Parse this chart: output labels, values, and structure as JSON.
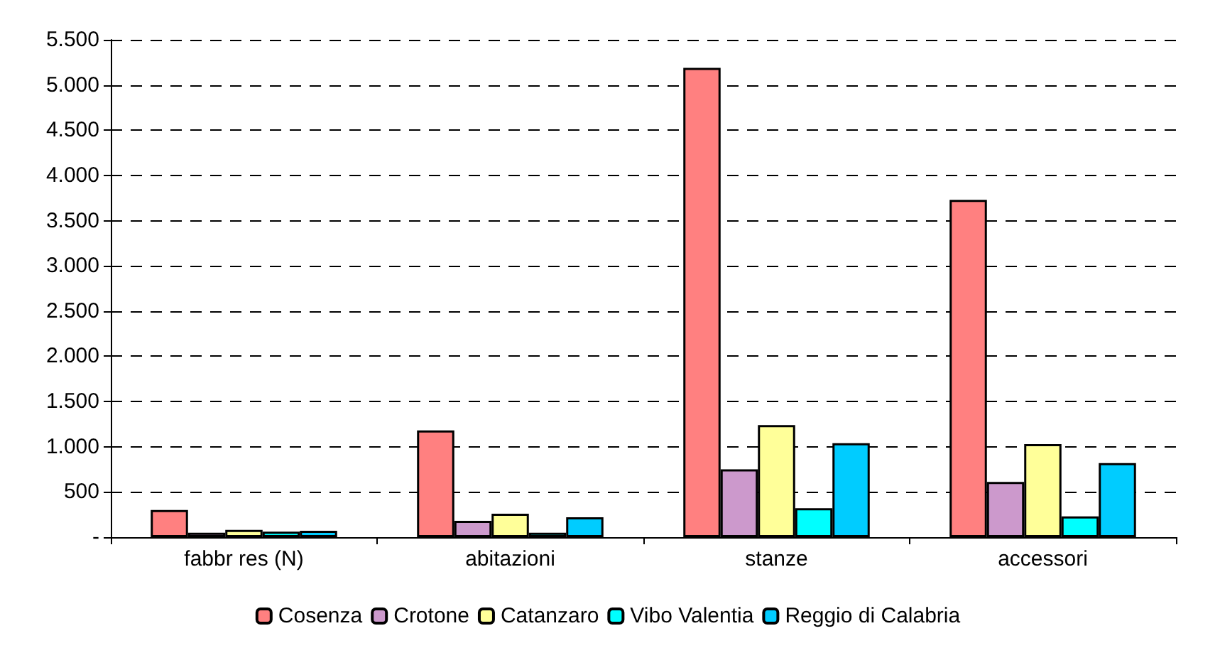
{
  "chart_data": {
    "type": "bar",
    "categories": [
      "fabbr res (N)",
      "abitazioni",
      "stanze",
      "accessori"
    ],
    "series": [
      {
        "name": "Cosenza",
        "color": "#ff8080",
        "values": [
          300,
          1180,
          5190,
          3730
        ]
      },
      {
        "name": "Crotone",
        "color": "#cc99cc",
        "values": [
          50,
          180,
          750,
          610
        ]
      },
      {
        "name": "Catanzaro",
        "color": "#ffff99",
        "values": [
          80,
          260,
          1240,
          1030
        ]
      },
      {
        "name": "Vibo Valentia",
        "color": "#00ffff",
        "values": [
          60,
          50,
          320,
          230
        ]
      },
      {
        "name": "Reggio di Calabria",
        "color": "#00ccff",
        "values": [
          70,
          220,
          1040,
          820
        ]
      }
    ],
    "ylim": [
      0,
      5500
    ],
    "yticks": [
      {
        "value": 0,
        "label": "-"
      },
      500,
      {
        "value": 1000,
        "label": "1.000"
      },
      {
        "value": 1500,
        "label": "1.500"
      },
      {
        "value": 2000,
        "label": "2.000"
      },
      {
        "value": 2500,
        "label": "2.500"
      },
      {
        "value": 3000,
        "label": "3.000"
      },
      {
        "value": 3500,
        "label": "3.500"
      },
      {
        "value": 4000,
        "label": "4.000"
      },
      {
        "value": 4500,
        "label": "4.500"
      },
      {
        "value": 5000,
        "label": "5.000"
      },
      {
        "value": 5500,
        "label": "5.500"
      }
    ],
    "grid": "y",
    "legend": "bottom"
  }
}
